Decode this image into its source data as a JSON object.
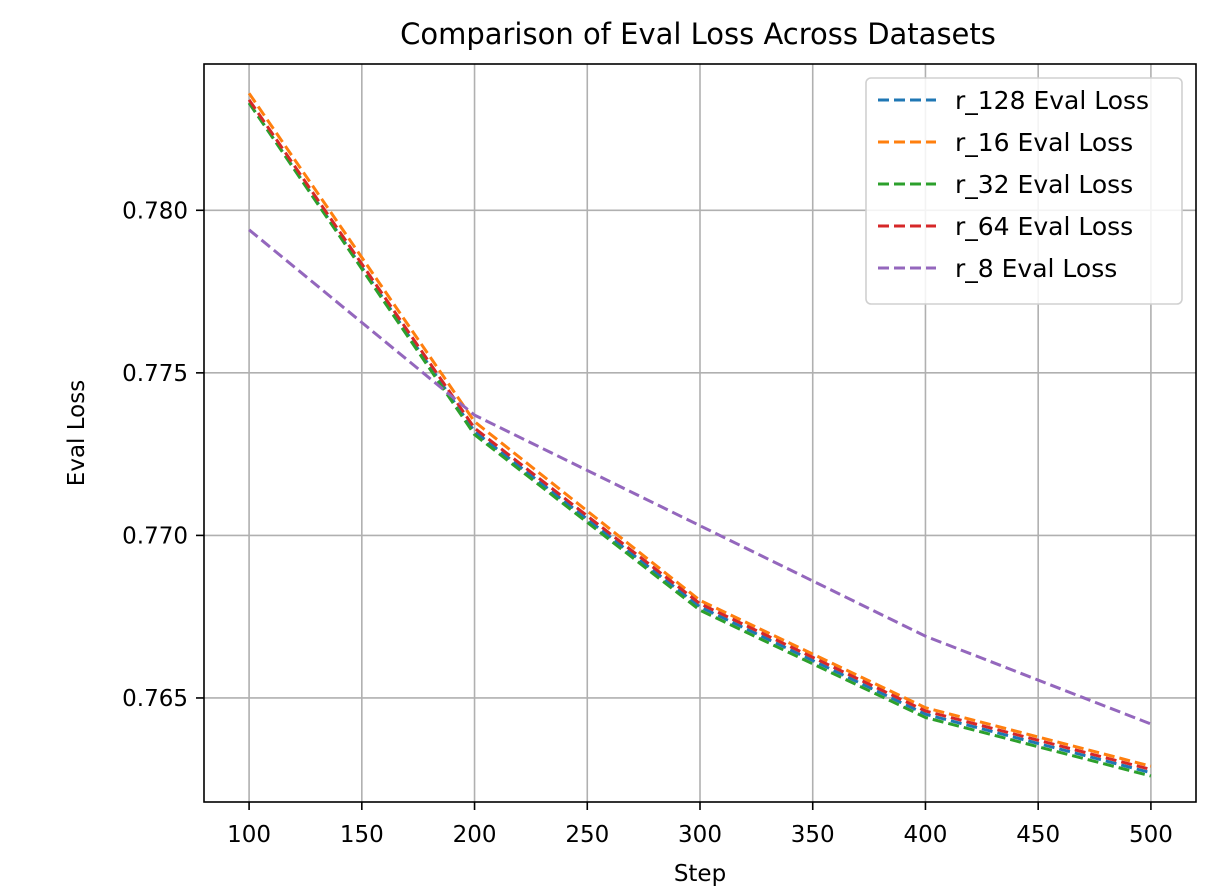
{
  "chart_data": {
    "type": "line",
    "title": "Comparison of Eval Loss Across Datasets",
    "xlabel": "Step",
    "ylabel": "Eval Loss",
    "xlim": [
      80,
      520
    ],
    "ylim": [
      0.7618,
      0.7845
    ],
    "xticks": [
      100,
      150,
      200,
      250,
      300,
      350,
      400,
      450,
      500
    ],
    "yticks": [
      0.765,
      0.77,
      0.775,
      0.78
    ],
    "ytick_labels": [
      "0.765",
      "0.770",
      "0.775",
      "0.780"
    ],
    "grid": true,
    "legend_position": "top-right",
    "line_style": "dashed",
    "x": [
      100,
      200,
      300,
      400,
      500
    ],
    "series": [
      {
        "name": "r_128 Eval Loss",
        "color": "#1f77b4",
        "values": [
          0.7833,
          0.7732,
          0.7678,
          0.7645,
          0.7627
        ]
      },
      {
        "name": "r_16 Eval Loss",
        "color": "#ff7f0e",
        "values": [
          0.7836,
          0.7735,
          0.768,
          0.7647,
          0.7629
        ]
      },
      {
        "name": "r_32 Eval Loss",
        "color": "#2ca02c",
        "values": [
          0.7833,
          0.7731,
          0.7677,
          0.7644,
          0.7626
        ]
      },
      {
        "name": "r_64 Eval Loss",
        "color": "#d62728",
        "values": [
          0.7834,
          0.7733,
          0.7679,
          0.7646,
          0.7628
        ]
      },
      {
        "name": "r_8 Eval Loss",
        "color": "#9467bd",
        "values": [
          0.7794,
          0.7737,
          0.7703,
          0.7669,
          0.7642
        ]
      }
    ]
  }
}
